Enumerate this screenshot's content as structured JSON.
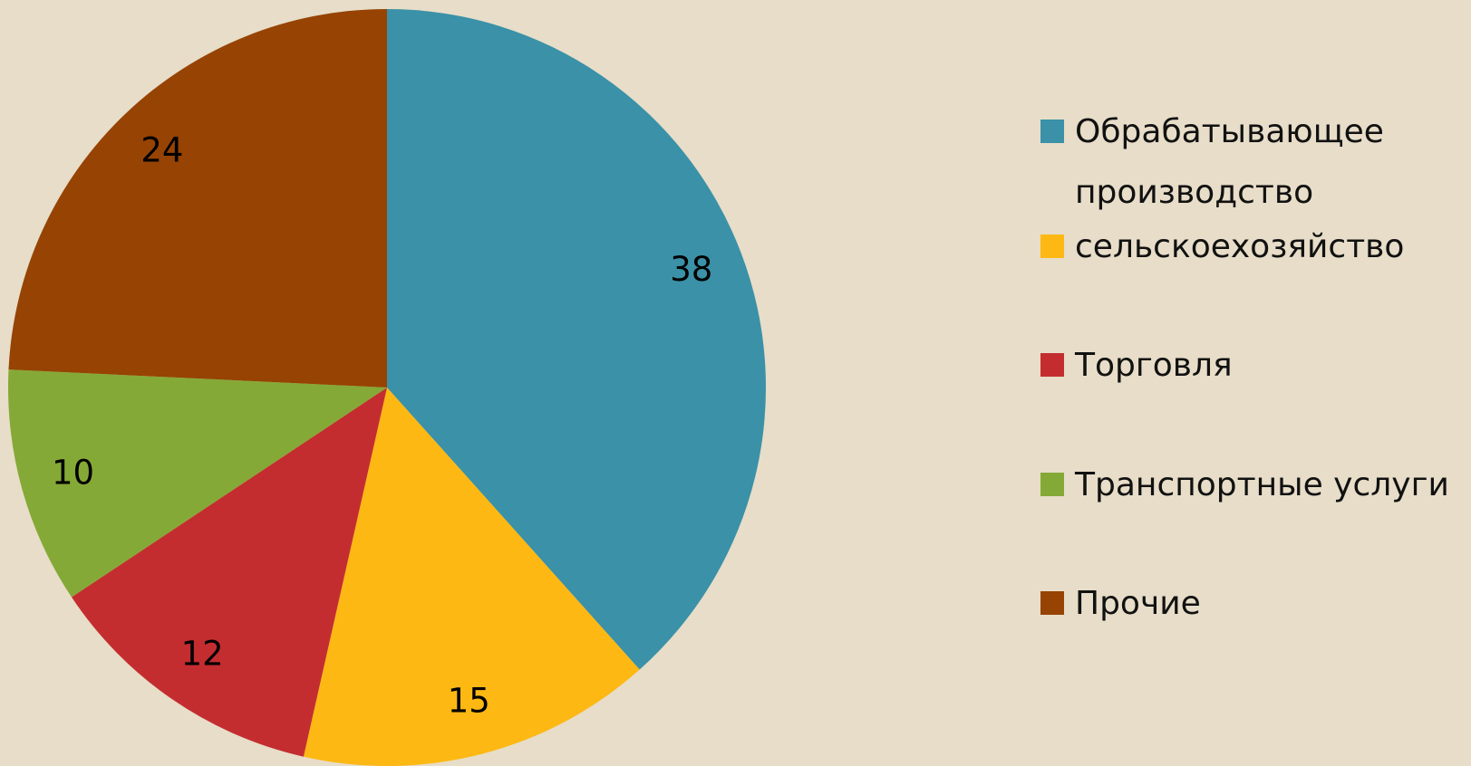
{
  "chart_data": {
    "type": "pie",
    "categories": [
      "Обрабатывающее производство",
      "сельскоехозяйство",
      "Торговля",
      "Транспортные услуги",
      "Прочие"
    ],
    "values": [
      38,
      15,
      12,
      10,
      24
    ],
    "colors": [
      "#3a91a8",
      "#fdb813",
      "#c42d30",
      "#85a936",
      "#964304"
    ],
    "legend": "right"
  }
}
